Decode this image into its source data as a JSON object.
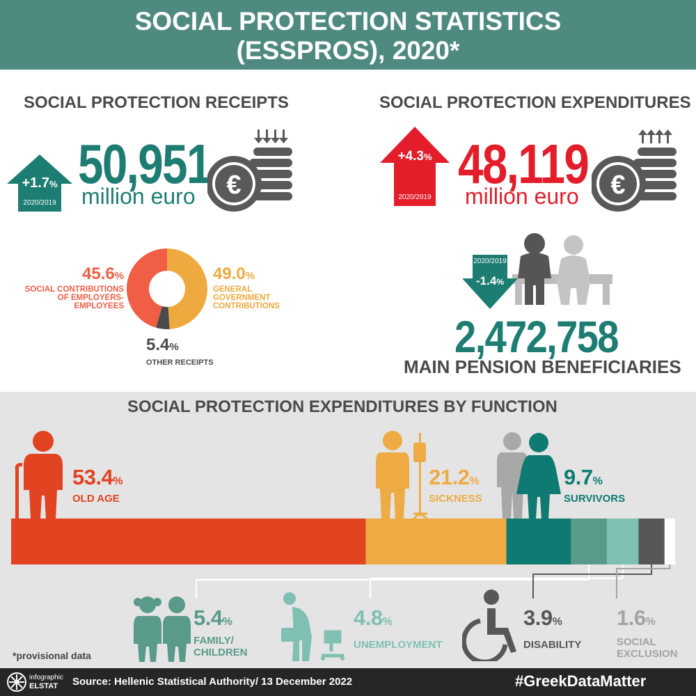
{
  "header": {
    "title_line1": "SOCIAL PROTECTION STATISTICS",
    "title_line2": "(ESSPROS), 2020*"
  },
  "receipts": {
    "title": "SOCIAL PROTECTION RECEIPTS",
    "value": "50,951",
    "unit": "million euro",
    "change": "+1.7",
    "change_unit": "%",
    "period": "2020/2019",
    "color": "#1e7d72"
  },
  "expenditures": {
    "title": "SOCIAL PROTECTION EXPENDITURES",
    "value": "48,119",
    "unit": "million euro",
    "change": "+4.3",
    "change_unit": "%",
    "period": "2020/2019",
    "color": "#e31e2a"
  },
  "pension": {
    "value": "2,472,758",
    "label": "MAIN PENSION BENEFICIARIES",
    "change": "-1.4",
    "change_unit": "%",
    "period": "2020/2019"
  },
  "function_title": "SOCIAL PROTECTION EXPENDITURES BY FUNCTION",
  "provisional": "*provisional data",
  "footer": {
    "logo_line1": "infographic",
    "logo_line2": "ELSTAT",
    "source": "Source: Hellenic Statistical Authority/ 13 December 2022",
    "hashtag": "#GreekDataMatter"
  },
  "chart_data": [
    {
      "type": "pie",
      "categories": [
        "GENERAL GOVERNMENT CONTRIBUTIONS",
        "OTHER RECEIPTS",
        "SOCIAL CONTRIBUTIONS OF EMPLOYERS-EMPLOYEES"
      ],
      "values": [
        49.0,
        5.4,
        45.6
      ],
      "value_labels": [
        "49.0",
        "5.4",
        "45.6"
      ],
      "unit": "%",
      "colors": [
        "#eeaa3f",
        "#4a4a4a",
        "#ef5e45"
      ]
    },
    {
      "type": "bar",
      "orientation": "horizontal-stacked",
      "categories": [
        "OLD AGE",
        "SICKNESS",
        "SURVIVORS",
        "FAMILY/ CHILDREN",
        "UNEMPLOYMENT",
        "DISABILITY",
        "SOCIAL EXCLUSION"
      ],
      "values": [
        53.4,
        21.2,
        9.7,
        5.4,
        4.8,
        3.9,
        1.6
      ],
      "value_labels": [
        "53.4",
        "21.2",
        "9.7",
        "5.4",
        "4.8",
        "3.9",
        "1.6"
      ],
      "unit": "%",
      "colors": [
        "#e24321",
        "#eeab44",
        "#0f7a71",
        "#5a9a8b",
        "#7fc0b3",
        "#575757",
        "#ffffff"
      ]
    }
  ]
}
